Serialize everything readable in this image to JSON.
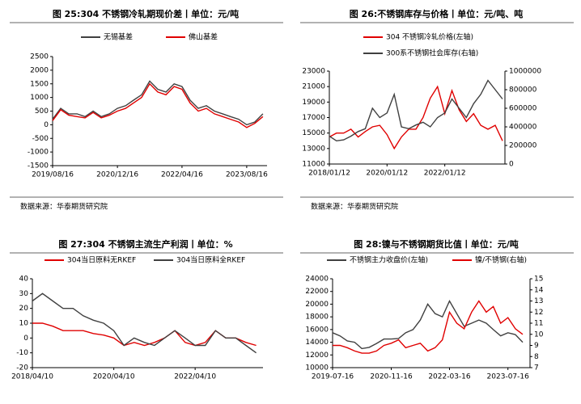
{
  "chart_data": [
    {
      "type": "line",
      "title": "图 25:304 不锈钢冷轧期现价差丨单位：元/吨",
      "source": "数据来源：华泰期货研究院",
      "x": [
        "2019/08/16",
        "2019/10/16",
        "2019/12/16",
        "2020/02/16",
        "2020/04/16",
        "2020/06/16",
        "2020/08/16",
        "2020/10/16",
        "2020/12/16",
        "2021/02/16",
        "2021/04/16",
        "2021/06/16",
        "2021/08/16",
        "2021/10/16",
        "2021/12/16",
        "2022/02/16",
        "2022/04/16",
        "2022/06/16",
        "2022/08/16",
        "2022/10/16",
        "2022/12/16",
        "2023/02/16",
        "2023/04/16",
        "2023/06/16",
        "2023/08/16",
        "2023/10/16",
        "2023/12/16"
      ],
      "xlim": [
        "2019/08/16",
        "2024/01/16"
      ],
      "xticks": [
        "2019/08/16",
        "2020/12/16",
        "2022/04/16",
        "2023/08/16"
      ],
      "ylim": [
        -1500,
        2500
      ],
      "yticks": [
        -1500,
        -1000,
        -500,
        0,
        500,
        1000,
        1500,
        2000,
        2500
      ],
      "series": [
        {
          "name": "无锡基差",
          "color": "#404040",
          "values": [
            200,
            600,
            400,
            400,
            300,
            500,
            300,
            400,
            600,
            700,
            900,
            1100,
            1600,
            1300,
            1200,
            1500,
            1400,
            900,
            600,
            700,
            500,
            400,
            300,
            200,
            0,
            100,
            400
          ]
        },
        {
          "name": "佛山基差",
          "color": "#e00000",
          "values": [
            150,
            550,
            350,
            300,
            250,
            450,
            250,
            350,
            500,
            600,
            800,
            1000,
            1500,
            1200,
            1100,
            1400,
            1300,
            800,
            500,
            600,
            400,
            300,
            200,
            100,
            -100,
            50,
            300
          ]
        }
      ]
    },
    {
      "type": "line",
      "title": "图 26:不锈钢库存与价格丨单位：元/吨、吨",
      "source": "数据来源：华泰期货研究院",
      "x": [
        "2018/01/12",
        "2018/04/12",
        "2018/07/12",
        "2018/10/12",
        "2019/01/12",
        "2019/04/12",
        "2019/07/12",
        "2019/10/12",
        "2020/01/12",
        "2020/04/12",
        "2020/07/12",
        "2020/10/12",
        "2021/01/12",
        "2021/04/12",
        "2021/07/12",
        "2021/10/12",
        "2022/01/12",
        "2022/04/12",
        "2022/07/12",
        "2022/10/12",
        "2023/01/12",
        "2023/04/12",
        "2023/07/12",
        "2023/10/12",
        "2024/01/12"
      ],
      "xlim": [
        "2018/01/12",
        "2024/02/12"
      ],
      "xticks": [
        "2018/01/12",
        "2020/01/12",
        "2022/01/12"
      ],
      "ylim": [
        11000,
        23000
      ],
      "yticks": [
        11000,
        13000,
        15000,
        17000,
        19000,
        21000,
        23000
      ],
      "y2lim": [
        0,
        1000000
      ],
      "y2ticks": [
        0,
        200000,
        400000,
        600000,
        800000,
        1000000
      ],
      "series": [
        {
          "name": "304 不锈钢冷轧价格(左轴)",
          "color": "#e00000",
          "values": [
            14500,
            15000,
            15000,
            15500,
            14500,
            15200,
            15800,
            16000,
            14800,
            13000,
            14500,
            15500,
            15500,
            17000,
            19500,
            21000,
            17500,
            20500,
            18000,
            16500,
            17500,
            16000,
            15500,
            16000,
            14000
          ]
        },
        {
          "name": "300系不锈钢社会库存(右轴)",
          "color": "#404040",
          "axis": "y2",
          "values": [
            300000,
            250000,
            260000,
            300000,
            350000,
            380000,
            600000,
            500000,
            550000,
            750000,
            400000,
            380000,
            420000,
            450000,
            400000,
            500000,
            550000,
            700000,
            600000,
            500000,
            650000,
            750000,
            900000,
            800000,
            700000
          ]
        }
      ]
    },
    {
      "type": "line",
      "title": "图 27:304 不锈钢主流生产利润丨单位：%",
      "x": [
        "2018/04/10",
        "2018/07/10",
        "2018/10/10",
        "2019/01/10",
        "2019/04/10",
        "2019/07/10",
        "2019/10/10",
        "2020/01/10",
        "2020/04/10",
        "2020/07/10",
        "2020/10/10",
        "2021/01/10",
        "2021/04/10",
        "2021/07/10",
        "2021/10/10",
        "2022/01/10",
        "2022/04/10",
        "2022/07/10",
        "2022/10/10",
        "2023/01/10",
        "2023/04/10",
        "2023/07/10",
        "2023/10/10"
      ],
      "xlim": [
        "2018/04/10",
        "2023/12/10"
      ],
      "xticks": [
        "2018/04/10",
        "2020/04/10",
        "2022/04/10"
      ],
      "ylim": [
        -20,
        40
      ],
      "yticks": [
        -20,
        -10,
        0,
        10,
        20,
        30,
        40
      ],
      "series": [
        {
          "name": "304当日原料无RKEF",
          "color": "#e00000",
          "values": [
            10,
            10,
            8,
            5,
            5,
            5,
            3,
            2,
            0,
            -5,
            -3,
            -5,
            -3,
            0,
            5,
            -3,
            -5,
            -3,
            5,
            0,
            0,
            -3,
            -5
          ]
        },
        {
          "name": "304当日原料全RKEF",
          "color": "#404040",
          "values": [
            25,
            30,
            25,
            20,
            20,
            15,
            12,
            10,
            5,
            -5,
            0,
            -3,
            -5,
            0,
            5,
            0,
            -5,
            -5,
            5,
            0,
            0,
            -5,
            -10
          ]
        }
      ]
    },
    {
      "type": "line",
      "title": "图 28:镍与不锈钢期货比值丨单位：元/吨",
      "x": [
        "2019-07-16",
        "2019-09-16",
        "2019-11-16",
        "2020-01-16",
        "2020-03-16",
        "2020-05-16",
        "2020-07-16",
        "2020-09-16",
        "2020-11-16",
        "2021-01-16",
        "2021-03-16",
        "2021-05-16",
        "2021-07-16",
        "2021-09-16",
        "2021-11-16",
        "2022-01-16",
        "2022-03-16",
        "2022-05-16",
        "2022-07-16",
        "2022-09-16",
        "2022-11-16",
        "2023-01-16",
        "2023-03-16",
        "2023-05-16",
        "2023-07-16",
        "2023-09-16",
        "2023-11-16"
      ],
      "xlim": [
        "2019-07-16",
        "2024-01-16"
      ],
      "xticks": [
        "2019-07-16",
        "2020-11-16",
        "2022-03-16",
        "2023-07-16"
      ],
      "ylim": [
        10000,
        24000
      ],
      "yticks": [
        10000,
        12000,
        14000,
        16000,
        18000,
        20000,
        22000,
        24000
      ],
      "y2lim": [
        7,
        15
      ],
      "y2ticks": [
        7,
        8,
        9,
        10,
        11,
        12,
        13,
        14,
        15
      ],
      "series": [
        {
          "name": "不锈钢主力收盘价(左轴)",
          "color": "#404040",
          "values": [
            15500,
            15000,
            14200,
            14000,
            13000,
            13200,
            13800,
            14500,
            14500,
            14600,
            15500,
            16000,
            17500,
            20000,
            18500,
            18000,
            20500,
            18500,
            16500,
            17000,
            17500,
            17000,
            16000,
            15000,
            15500,
            15200,
            14000
          ]
        },
        {
          "name": "镍/不锈钢(右轴)",
          "color": "#e00000",
          "axis": "y2",
          "values": [
            9,
            9,
            8.8,
            8.5,
            8.3,
            8.3,
            8.5,
            9,
            9.2,
            9.5,
            8.8,
            9,
            9.2,
            8.5,
            8.8,
            9.5,
            12,
            11,
            10.5,
            12,
            13,
            12,
            12.5,
            11,
            11.5,
            10.5,
            10
          ]
        }
      ]
    }
  ]
}
